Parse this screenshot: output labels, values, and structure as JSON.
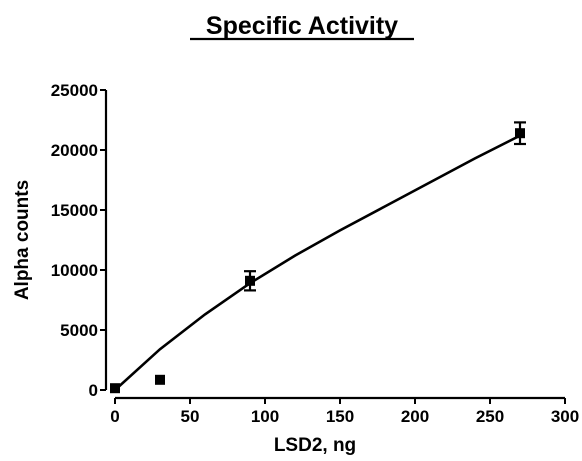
{
  "chart_data": {
    "type": "scatter",
    "title": "Specific Activity",
    "xlabel": "LSD2, ng",
    "ylabel": "Alpha counts",
    "xlim": [
      0,
      300
    ],
    "ylim": [
      0,
      25000
    ],
    "x_ticks": [
      "0",
      "50",
      "100",
      "150",
      "200",
      "250",
      "300"
    ],
    "y_ticks": [
      "0",
      "5000",
      "10000",
      "15000",
      "20000",
      "25000"
    ],
    "grid": false,
    "legend": "none",
    "points": [
      {
        "x": 0,
        "y": 150,
        "err": 0
      },
      {
        "x": 30,
        "y": 850,
        "err": 0
      },
      {
        "x": 90,
        "y": 9100,
        "err": 800
      },
      {
        "x": 270,
        "y": 21400,
        "err": 900
      }
    ],
    "fit_curve": [
      {
        "x": 0,
        "y": 0
      },
      {
        "x": 30,
        "y": 3400
      },
      {
        "x": 60,
        "y": 6300
      },
      {
        "x": 90,
        "y": 8900
      },
      {
        "x": 120,
        "y": 11200
      },
      {
        "x": 150,
        "y": 13300
      },
      {
        "x": 180,
        "y": 15300
      },
      {
        "x": 210,
        "y": 17300
      },
      {
        "x": 240,
        "y": 19300
      },
      {
        "x": 270,
        "y": 21200
      }
    ]
  }
}
